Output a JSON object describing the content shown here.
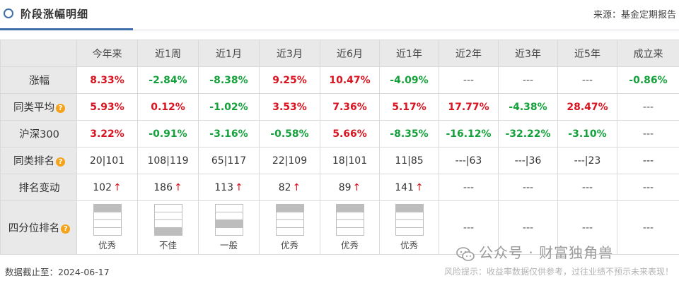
{
  "header": {
    "title": "阶段涨幅明细",
    "source": "来源：基金定期报告"
  },
  "columns": [
    "今年来",
    "近1周",
    "近1月",
    "近3月",
    "近6月",
    "近1年",
    "近2年",
    "近3年",
    "近5年",
    "成立来"
  ],
  "rows": {
    "gain": {
      "label": "涨幅",
      "cells": [
        {
          "t": "8.33%",
          "c": "up"
        },
        {
          "t": "-2.84%",
          "c": "down"
        },
        {
          "t": "-8.38%",
          "c": "down"
        },
        {
          "t": "9.25%",
          "c": "up"
        },
        {
          "t": "10.47%",
          "c": "up"
        },
        {
          "t": "-4.09%",
          "c": "down"
        },
        {
          "t": "---",
          "c": "dash"
        },
        {
          "t": "---",
          "c": "dash"
        },
        {
          "t": "---",
          "c": "dash"
        },
        {
          "t": "-0.86%",
          "c": "down"
        }
      ]
    },
    "peer": {
      "label": "同类平均",
      "cells": [
        {
          "t": "5.93%",
          "c": "up"
        },
        {
          "t": "0.12%",
          "c": "up"
        },
        {
          "t": "-1.02%",
          "c": "down"
        },
        {
          "t": "3.53%",
          "c": "up"
        },
        {
          "t": "7.36%",
          "c": "up"
        },
        {
          "t": "5.17%",
          "c": "up"
        },
        {
          "t": "17.77%",
          "c": "up"
        },
        {
          "t": "-4.38%",
          "c": "down"
        },
        {
          "t": "28.47%",
          "c": "up"
        },
        {
          "t": "---",
          "c": "dash"
        }
      ]
    },
    "index": {
      "label": "沪深300",
      "cells": [
        {
          "t": "3.22%",
          "c": "up"
        },
        {
          "t": "-0.91%",
          "c": "down"
        },
        {
          "t": "-3.16%",
          "c": "down"
        },
        {
          "t": "-0.58%",
          "c": "down"
        },
        {
          "t": "5.66%",
          "c": "up"
        },
        {
          "t": "-8.35%",
          "c": "down"
        },
        {
          "t": "-16.12%",
          "c": "down"
        },
        {
          "t": "-32.22%",
          "c": "down"
        },
        {
          "t": "-3.10%",
          "c": "down"
        },
        {
          "t": "---",
          "c": "dash"
        }
      ]
    },
    "rank": {
      "label": "同类排名",
      "cells": [
        "20|101",
        "108|119",
        "65|117",
        "22|109",
        "18|101",
        "11|85",
        "---|63",
        "---|36",
        "---|23",
        "---"
      ]
    },
    "change": {
      "label": "排名变动",
      "cells": [
        {
          "t": "102",
          "up": true
        },
        {
          "t": "186",
          "up": true
        },
        {
          "t": "113",
          "up": true
        },
        {
          "t": "82",
          "up": true
        },
        {
          "t": "89",
          "up": true
        },
        {
          "t": "141",
          "up": true
        },
        {
          "t": "---"
        },
        {
          "t": "---"
        },
        {
          "t": "---"
        },
        {
          "t": "---"
        }
      ],
      "arrow": "↑"
    },
    "quartile": {
      "label": "四分位排名",
      "cells": [
        {
          "label": "优秀",
          "level": 1
        },
        {
          "label": "不佳",
          "level": 4
        },
        {
          "label": "一般",
          "level": 3
        },
        {
          "label": "优秀",
          "level": 1
        },
        {
          "label": "优秀",
          "level": 1
        },
        {
          "label": "优秀",
          "level": 1
        },
        {
          "text": "---"
        },
        {
          "text": "---"
        },
        {
          "text": "---"
        },
        {
          "text": "---"
        }
      ]
    }
  },
  "help_icon": "question-icon",
  "colors": {
    "up": "#d9131f",
    "down": "#13a13a",
    "accent": "#3f6faa",
    "help": "#f5a31a"
  },
  "footer": {
    "date": "数据截止至：2024-06-17",
    "risk": "风险提示：收益率数据仅供参考，过往业绩不预示未来表现！"
  },
  "watermark": "公众号 · 财富独角兽"
}
